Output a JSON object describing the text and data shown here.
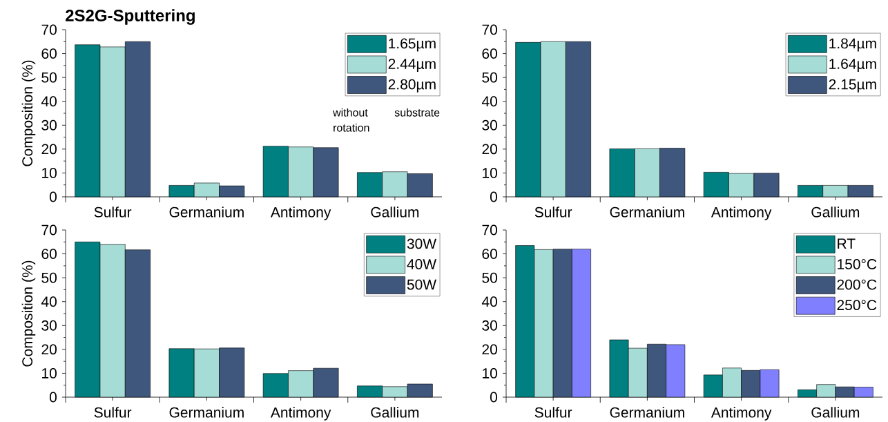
{
  "chart_data": [
    {
      "type": "bar",
      "title": "2S2G-Sputtering",
      "ylabel": "Composition (%)",
      "categories": [
        "Sulfur",
        "Germanium",
        "Antimony",
        "Gallium"
      ],
      "ylim": [
        0,
        70
      ],
      "yticks": [
        0,
        10,
        20,
        30,
        40,
        50,
        60,
        70
      ],
      "legend": "top right",
      "annotations": [
        "without substrate rotation"
      ],
      "series": [
        {
          "name": "1.65µm",
          "color": "#008080",
          "values": [
            63.7,
            4.8,
            21.2,
            10.2
          ]
        },
        {
          "name": "2.44µm",
          "color": "#a6dcd6",
          "values": [
            62.8,
            5.8,
            20.9,
            10.5
          ]
        },
        {
          "name": "2.80µm",
          "color": "#3f577c",
          "values": [
            65.0,
            4.6,
            20.6,
            9.7
          ]
        }
      ]
    },
    {
      "type": "bar",
      "categories": [
        "Sulfur",
        "Germanium",
        "Antimony",
        "Gallium"
      ],
      "ylim": [
        0,
        70
      ],
      "yticks": [
        0,
        10,
        20,
        30,
        40,
        50,
        60,
        70
      ],
      "legend": "top right",
      "series": [
        {
          "name": "1.84µm",
          "color": "#008080",
          "values": [
            64.7,
            20.1,
            10.3,
            4.8
          ]
        },
        {
          "name": "1.64µm",
          "color": "#a6dcd6",
          "values": [
            65.0,
            20.2,
            9.8,
            4.8
          ]
        },
        {
          "name": "2.15µm",
          "color": "#3f577c",
          "values": [
            65.0,
            20.4,
            9.9,
            4.8
          ]
        }
      ]
    },
    {
      "type": "bar",
      "ylabel": "Composition (%)",
      "categories": [
        "Sulfur",
        "Germanium",
        "Antimony",
        "Gallium"
      ],
      "ylim": [
        0,
        70
      ],
      "yticks": [
        0,
        10,
        20,
        30,
        40,
        50,
        60,
        70
      ],
      "legend": "top right",
      "series": [
        {
          "name": "30W",
          "color": "#008080",
          "values": [
            65.0,
            20.3,
            9.9,
            4.7
          ]
        },
        {
          "name": "40W",
          "color": "#a6dcd6",
          "values": [
            64.0,
            20.2,
            11.1,
            4.4
          ]
        },
        {
          "name": "50W",
          "color": "#3f577c",
          "values": [
            61.7,
            20.6,
            12.1,
            5.5
          ]
        }
      ]
    },
    {
      "type": "bar",
      "categories": [
        "Sulfur",
        "Germanium",
        "Antimony",
        "Gallium"
      ],
      "ylim": [
        0,
        70
      ],
      "yticks": [
        0,
        10,
        20,
        30,
        40,
        50,
        60,
        70
      ],
      "legend": "top right",
      "series": [
        {
          "name": "RT",
          "color": "#008080",
          "values": [
            63.5,
            24.0,
            9.3,
            3.1
          ]
        },
        {
          "name": "150°C",
          "color": "#a6dcd6",
          "values": [
            61.8,
            20.5,
            12.2,
            5.3
          ]
        },
        {
          "name": "200°C",
          "color": "#3f577c",
          "values": [
            62.0,
            22.2,
            11.2,
            4.3
          ]
        },
        {
          "name": "250°C",
          "color": "#8080ff",
          "values": [
            62.0,
            22.0,
            11.5,
            4.2
          ]
        }
      ]
    }
  ]
}
